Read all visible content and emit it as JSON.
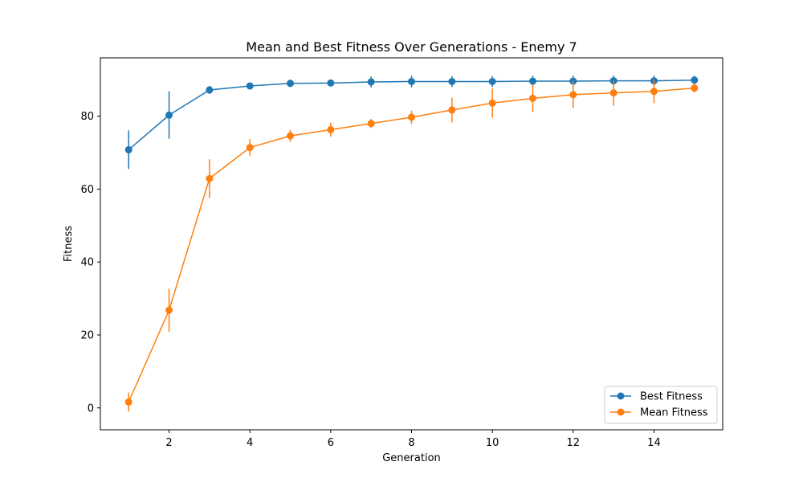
{
  "chart_data": {
    "type": "line",
    "title": "Mean and Best Fitness Over Generations - Enemy 7",
    "xlabel": "Generation",
    "ylabel": "Fitness",
    "x": [
      1,
      2,
      3,
      4,
      5,
      6,
      7,
      8,
      9,
      10,
      11,
      12,
      13,
      14,
      15
    ],
    "xlim": [
      0.3,
      15.7
    ],
    "ylim": [
      -6,
      96
    ],
    "x_ticks": [
      2,
      4,
      6,
      8,
      10,
      12,
      14
    ],
    "y_ticks": [
      0,
      20,
      40,
      60,
      80
    ],
    "grid": false,
    "legend_position": "lower right",
    "series": [
      {
        "name": "Best Fitness",
        "color": "#1f77b4",
        "values": [
          70.8,
          80.3,
          87.2,
          88.3,
          89.0,
          89.1,
          89.4,
          89.5,
          89.5,
          89.5,
          89.6,
          89.6,
          89.7,
          89.7,
          89.9
        ],
        "errors": [
          5.3,
          6.5,
          1.1,
          0.7,
          1.0,
          0.6,
          1.5,
          1.6,
          1.5,
          1.5,
          1.5,
          1.5,
          1.4,
          1.4,
          1.2
        ]
      },
      {
        "name": "Mean Fitness",
        "color": "#ff7f0e",
        "values": [
          1.6,
          26.8,
          62.9,
          71.4,
          74.6,
          76.3,
          78.0,
          79.7,
          81.7,
          83.6,
          84.9,
          85.9,
          86.4,
          86.8,
          87.7
        ],
        "errors": [
          2.6,
          5.9,
          5.3,
          2.3,
          1.6,
          1.9,
          1.2,
          1.8,
          3.4,
          4.0,
          3.8,
          3.7,
          3.5,
          3.2,
          1.2
        ]
      }
    ]
  }
}
